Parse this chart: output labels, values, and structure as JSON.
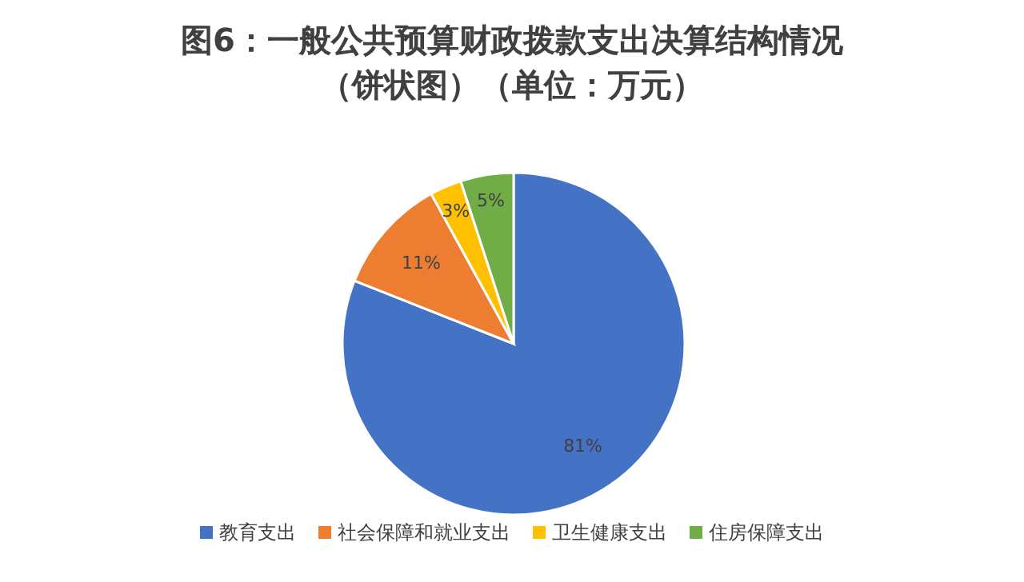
{
  "chart_data": {
    "type": "pie",
    "title": "图6：一般公共预算财政拨款支出决算结构情况",
    "subtitle": "（饼状图）（单位：万元）",
    "categories": [
      "教育支出",
      "社会保障和就业支出",
      "卫生健康支出",
      "住房保障支出"
    ],
    "values": [
      81,
      11,
      3,
      5
    ],
    "colors": [
      "#4472c4",
      "#ed7d31",
      "#ffc000",
      "#70ad47"
    ],
    "value_labels": [
      "81%",
      "11%",
      "3%",
      "5%"
    ],
    "legend": "bottom"
  }
}
